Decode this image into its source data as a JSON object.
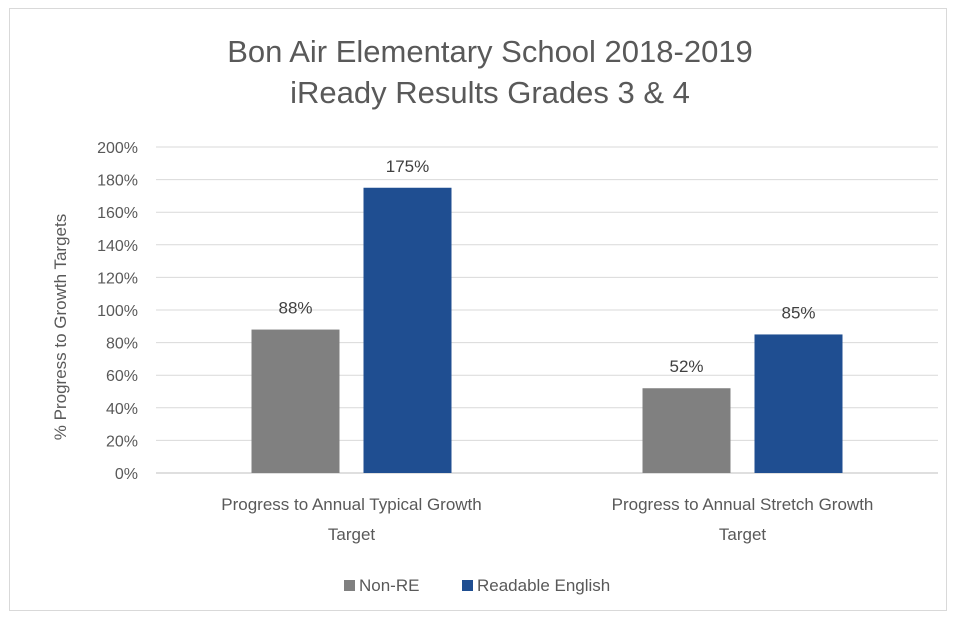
{
  "chart_data": {
    "type": "bar",
    "title": [
      "Bon Air Elementary School 2018-2019",
      "iReady Results Grades 3 & 4"
    ],
    "ylabel": "% Progress to Growth Targets",
    "xlabel": "",
    "ylim": [
      0,
      2.0
    ],
    "yticks": [
      0,
      0.2,
      0.4,
      0.6,
      0.8,
      1.0,
      1.2,
      1.4,
      1.6,
      1.8,
      2.0
    ],
    "ytick_labels": [
      "0%",
      "20%",
      "40%",
      "60%",
      "80%",
      "100%",
      "120%",
      "140%",
      "160%",
      "180%",
      "200%"
    ],
    "categories": [
      [
        "Progress to Annual Typical Growth",
        "Target"
      ],
      [
        "Progress to Annual Stretch Growth",
        "Target"
      ]
    ],
    "series": [
      {
        "name": "Non-RE",
        "color": "#808080",
        "values": [
          0.88,
          0.52
        ],
        "labels": [
          "88%",
          "52%"
        ]
      },
      {
        "name": "Readable English",
        "color": "#1f4e91",
        "values": [
          1.75,
          0.85
        ],
        "labels": [
          "175%",
          "85%"
        ]
      }
    ],
    "grid": true,
    "legend": "bottom"
  }
}
